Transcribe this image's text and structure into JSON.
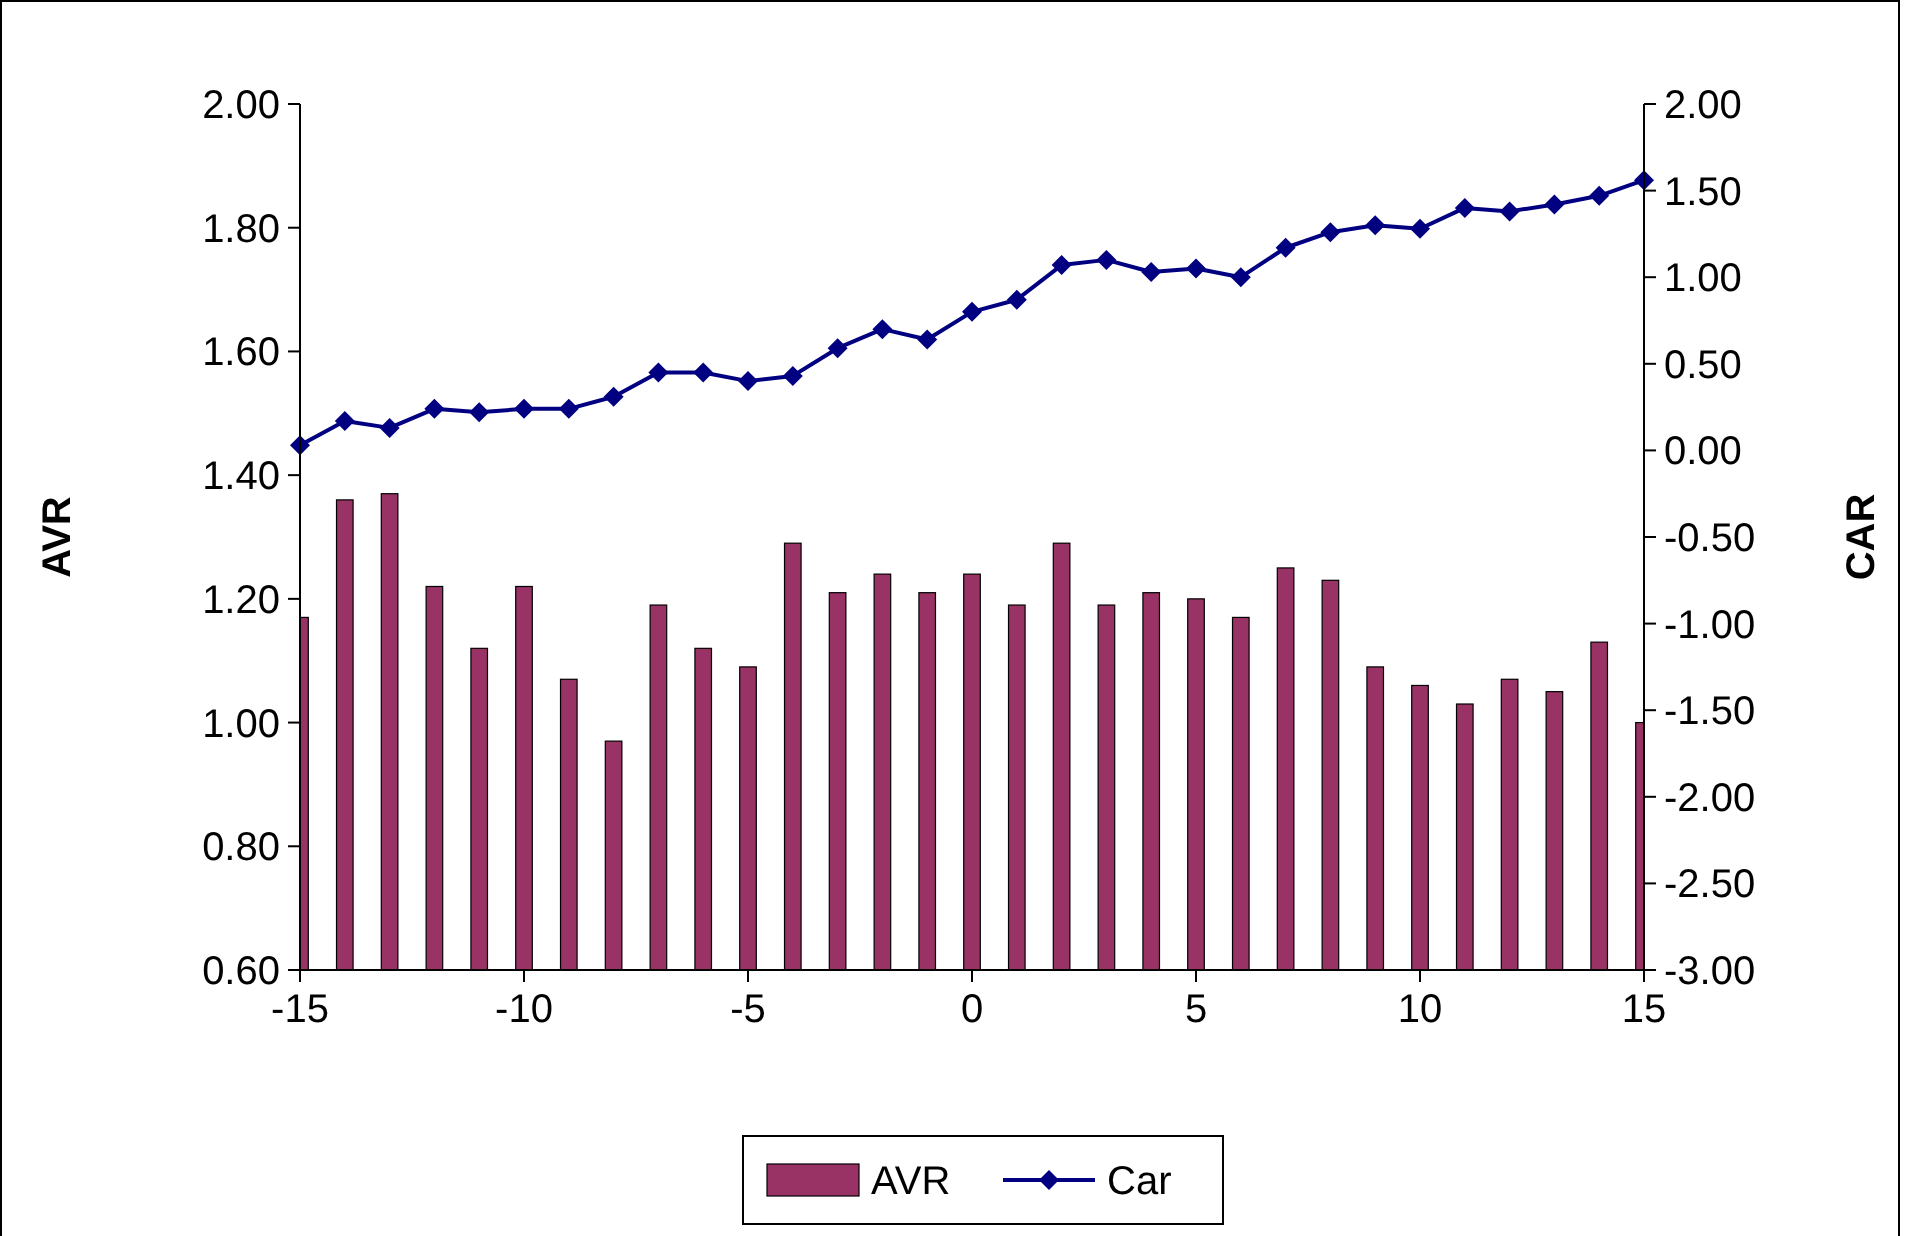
{
  "chart_data": {
    "type": "bar",
    "ylabel": "AVR",
    "y2label": "CAR",
    "x": [
      -15,
      -14,
      -13,
      -12,
      -11,
      -10,
      -9,
      -8,
      -7,
      -6,
      -5,
      -4,
      -3,
      -2,
      -1,
      0,
      1,
      2,
      3,
      4,
      5,
      6,
      7,
      8,
      9,
      10,
      11,
      12,
      13,
      14,
      15
    ],
    "xlim": [
      -15,
      15
    ],
    "xticks": [
      -15,
      -10,
      -5,
      0,
      5,
      10,
      15
    ],
    "ylim": [
      0.6,
      2
    ],
    "yticks": [
      {
        "value": 0.6,
        "label": "0.60"
      },
      {
        "value": 0.8,
        "label": "0.80"
      },
      {
        "value": 1,
        "label": "1.00"
      },
      {
        "value": 1.2,
        "label": "1.20"
      },
      {
        "value": 1.4,
        "label": "1.40"
      },
      {
        "value": 1.6,
        "label": "1.60"
      },
      {
        "value": 1.8,
        "label": "1.80"
      },
      {
        "value": 2,
        "label": "2.00"
      }
    ],
    "y2lim": [
      -3,
      2
    ],
    "y2ticks": [
      {
        "value": -3,
        "label": "-3.00"
      },
      {
        "value": -2.5,
        "label": "-2.50"
      },
      {
        "value": -2,
        "label": "-2.00"
      },
      {
        "value": -1.5,
        "label": "-1.50"
      },
      {
        "value": -1,
        "label": "-1.00"
      },
      {
        "value": -0.5,
        "label": "-0.50"
      },
      {
        "value": 0,
        "label": "0.00"
      },
      {
        "value": 0.5,
        "label": "0.50"
      },
      {
        "value": 1,
        "label": "1.00"
      },
      {
        "value": 1.5,
        "label": "1.50"
      },
      {
        "value": 2,
        "label": "2.00"
      }
    ],
    "legend": "bottom",
    "marker": "diamond",
    "series": [
      {
        "name": "AVR",
        "color": "#993366",
        "values": [
          1.17,
          1.36,
          1.37,
          1.22,
          1.12,
          1.22,
          1.07,
          0.97,
          1.19,
          1.12,
          1.09,
          1.29,
          1.21,
          1.24,
          1.21,
          1.24,
          1.19,
          1.29,
          1.19,
          1.21,
          1.2,
          1.17,
          1.25,
          1.23,
          1.09,
          1.06,
          1.03,
          1.07,
          1.05,
          1.13,
          1.0
        ]
      },
      {
        "name": "Car",
        "type": "line",
        "axis": "y2",
        "color": "#000080",
        "values": [
          0.03,
          0.17,
          0.13,
          0.24,
          0.22,
          0.24,
          0.24,
          0.31,
          0.45,
          0.45,
          0.4,
          0.43,
          0.59,
          0.7,
          0.64,
          0.8,
          0.87,
          1.07,
          1.1,
          1.03,
          1.05,
          1.0,
          1.17,
          1.26,
          1.3,
          1.28,
          1.4,
          1.38,
          1.42,
          1.47,
          1.56
        ]
      }
    ]
  }
}
